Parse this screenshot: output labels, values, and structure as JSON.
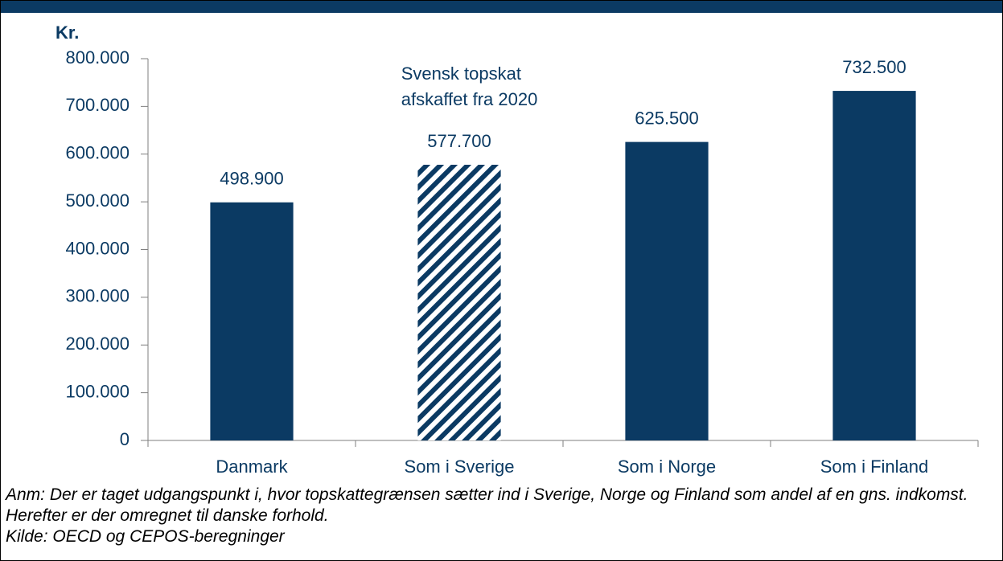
{
  "chart_data": {
    "type": "bar",
    "y_label": "Kr.",
    "categories": [
      "Danmark",
      "Som i Sverige",
      "Som i Norge",
      "Som i Finland"
    ],
    "values": [
      498900,
      577700,
      625500,
      732500
    ],
    "value_labels": [
      "498.900",
      "577.700",
      "625.500",
      "732.500"
    ],
    "hatched": [
      false,
      true,
      false,
      false
    ],
    "color": "#0b3a63",
    "annotation": [
      "Svensk topskat",
      "afskaffet fra 2020"
    ],
    "ylim": [
      0,
      800000
    ],
    "yticks": [
      0,
      {
        "value": 100000,
        "label": "100.000"
      },
      {
        "value": 200000,
        "label": "200.000"
      },
      {
        "value": 300000,
        "label": "300.000"
      },
      {
        "value": 400000,
        "label": "400.000"
      },
      {
        "value": 500000,
        "label": "500.000"
      },
      {
        "value": 600000,
        "label": "600.000"
      },
      {
        "value": 700000,
        "label": "700.000"
      },
      {
        "value": 800000,
        "label": "800.000"
      }
    ],
    "grid": false,
    "notes": [
      "Anm: Der er taget udgangspunkt i, hvor topskattegrænsen sætter ind i Sverige, Norge og Finland som andel af en gns. indkomst. Herefter er der omregnet til danske forhold.",
      "Kilde: OECD og CEPOS-beregninger"
    ]
  }
}
